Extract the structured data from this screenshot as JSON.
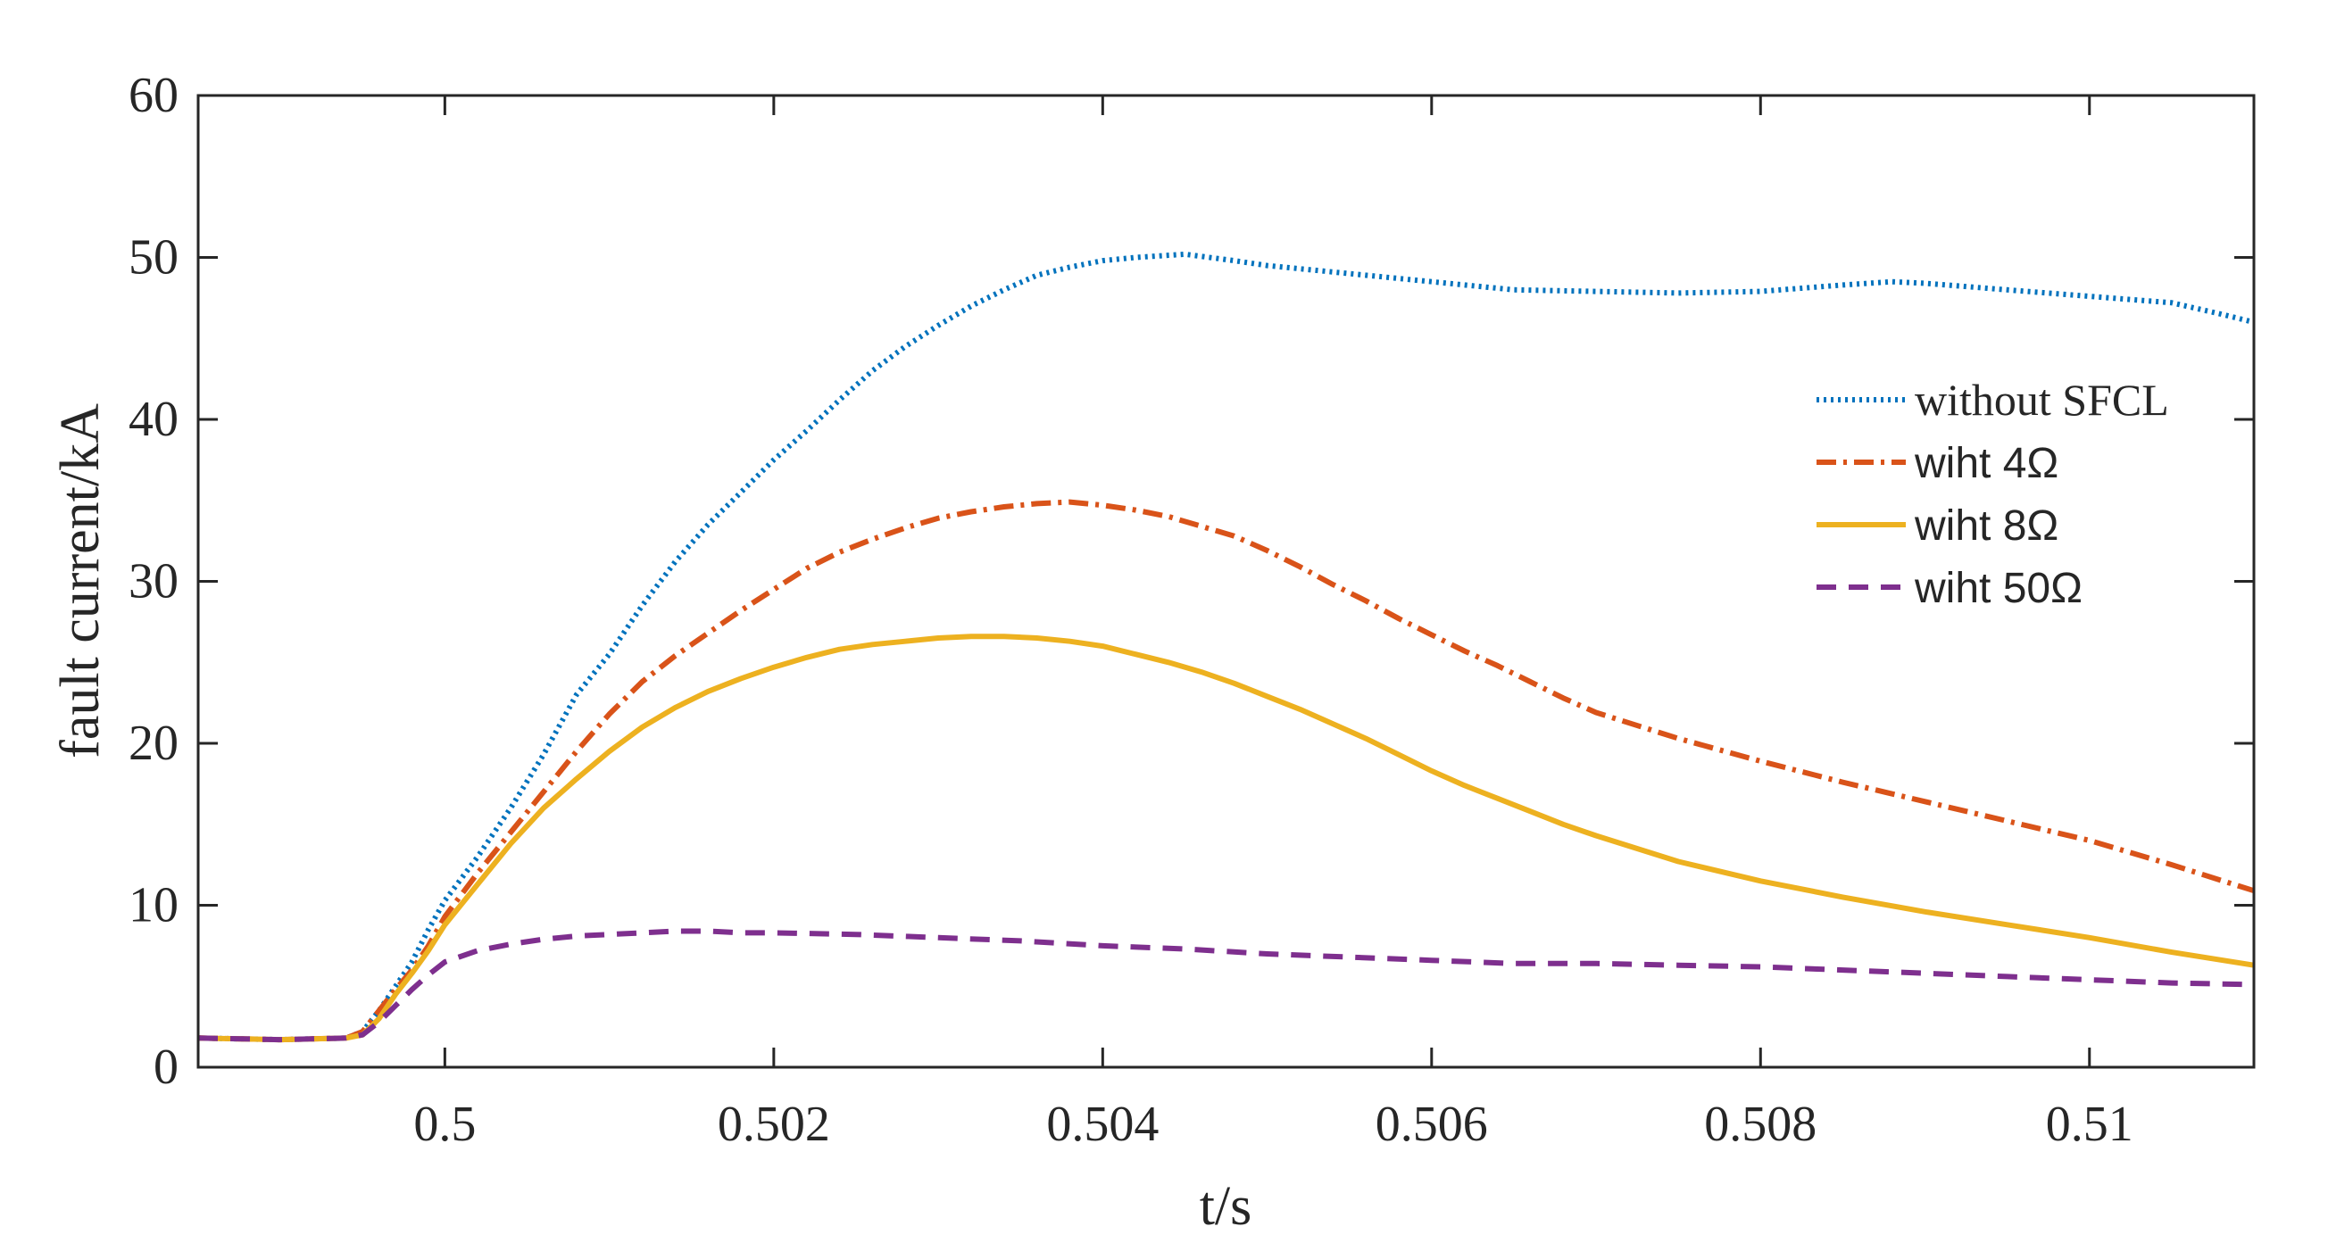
{
  "chart_data": {
    "type": "line",
    "title": "",
    "xlabel": "t/s",
    "ylabel": "fault current/kA",
    "xlim": [
      0.4985,
      0.511
    ],
    "ylim": [
      0,
      60
    ],
    "xticks": [
      0.5,
      0.502,
      0.504,
      0.506,
      0.508,
      0.51
    ],
    "xtick_labels": [
      "0.5",
      "0.502",
      "0.504",
      "0.506",
      "0.508",
      "0.51"
    ],
    "yticks": [
      0,
      10,
      20,
      30,
      40,
      50,
      60
    ],
    "ytick_labels": [
      "0",
      "10",
      "20",
      "30",
      "40",
      "50",
      "60"
    ],
    "grid": false,
    "legend_position": "right",
    "series": [
      {
        "name": "without SFCL",
        "color": "#0072BD",
        "style": "dotted",
        "x": [
          0.4985,
          0.499,
          0.4994,
          0.4995,
          0.4996,
          0.4997,
          0.4998,
          0.4999,
          0.5,
          0.5002,
          0.5004,
          0.5006,
          0.5008,
          0.501,
          0.5012,
          0.5014,
          0.5016,
          0.5018,
          0.502,
          0.5022,
          0.5024,
          0.5026,
          0.5028,
          0.503,
          0.5032,
          0.5034,
          0.5036,
          0.5038,
          0.504,
          0.5042,
          0.5045,
          0.5048,
          0.505,
          0.5055,
          0.506,
          0.5065,
          0.507,
          0.5075,
          0.508,
          0.5085,
          0.5088,
          0.509,
          0.5095,
          0.51,
          0.5105,
          0.5108,
          0.511
        ],
        "y": [
          1.8,
          1.7,
          1.8,
          2.2,
          3.5,
          5.0,
          6.5,
          8.5,
          10.3,
          13.0,
          16.0,
          19.3,
          23.0,
          25.5,
          28.5,
          31.2,
          33.5,
          35.5,
          37.5,
          39.3,
          41.2,
          43.0,
          44.5,
          45.8,
          47.0,
          48.0,
          48.9,
          49.4,
          49.8,
          50.0,
          50.2,
          49.8,
          49.5,
          49.0,
          48.5,
          48.0,
          47.9,
          47.8,
          47.9,
          48.3,
          48.5,
          48.4,
          48.0,
          47.6,
          47.2,
          46.5,
          46.0
        ]
      },
      {
        "name": "wiht 4Ω",
        "color": "#D95319",
        "style": "dashdot",
        "x": [
          0.4985,
          0.499,
          0.4994,
          0.4995,
          0.4996,
          0.4997,
          0.4998,
          0.4999,
          0.5,
          0.5002,
          0.5004,
          0.5006,
          0.5008,
          0.501,
          0.5012,
          0.5014,
          0.5016,
          0.5018,
          0.502,
          0.5022,
          0.5024,
          0.5026,
          0.5028,
          0.503,
          0.5032,
          0.5034,
          0.5036,
          0.5038,
          0.504,
          0.5042,
          0.5044,
          0.5046,
          0.5048,
          0.505,
          0.5052,
          0.5054,
          0.5056,
          0.5058,
          0.506,
          0.5062,
          0.5064,
          0.5066,
          0.5068,
          0.507,
          0.5075,
          0.508,
          0.5085,
          0.509,
          0.5095,
          0.51,
          0.5105,
          0.511
        ],
        "y": [
          1.8,
          1.7,
          1.8,
          2.2,
          3.5,
          4.8,
          6.0,
          7.5,
          9.3,
          12.0,
          14.5,
          17.0,
          19.5,
          21.8,
          23.8,
          25.4,
          26.8,
          28.2,
          29.5,
          30.8,
          31.8,
          32.6,
          33.3,
          33.9,
          34.3,
          34.6,
          34.8,
          34.9,
          34.7,
          34.4,
          34.0,
          33.4,
          32.8,
          31.9,
          30.9,
          29.8,
          28.8,
          27.7,
          26.7,
          25.7,
          24.8,
          23.8,
          22.8,
          21.9,
          20.3,
          18.9,
          17.6,
          16.4,
          15.2,
          14.0,
          12.5,
          10.9
        ]
      },
      {
        "name": "wiht 8Ω",
        "color": "#EDB120",
        "style": "solid",
        "x": [
          0.4985,
          0.499,
          0.4994,
          0.4995,
          0.4996,
          0.4997,
          0.4998,
          0.4999,
          0.5,
          0.5002,
          0.5004,
          0.5006,
          0.5008,
          0.501,
          0.5012,
          0.5014,
          0.5016,
          0.5018,
          0.502,
          0.5022,
          0.5024,
          0.5026,
          0.5028,
          0.503,
          0.5032,
          0.5034,
          0.5036,
          0.5038,
          0.504,
          0.5042,
          0.5044,
          0.5046,
          0.5048,
          0.505,
          0.5052,
          0.5054,
          0.5056,
          0.5058,
          0.506,
          0.5062,
          0.5064,
          0.5066,
          0.5068,
          0.507,
          0.5075,
          0.508,
          0.5085,
          0.509,
          0.5095,
          0.51,
          0.5105,
          0.511
        ],
        "y": [
          1.8,
          1.7,
          1.8,
          2.0,
          3.0,
          4.5,
          5.8,
          7.2,
          8.8,
          11.3,
          13.8,
          16.0,
          17.8,
          19.5,
          21.0,
          22.2,
          23.2,
          24.0,
          24.7,
          25.3,
          25.8,
          26.1,
          26.3,
          26.5,
          26.6,
          26.6,
          26.5,
          26.3,
          26.0,
          25.5,
          25.0,
          24.4,
          23.7,
          22.9,
          22.1,
          21.2,
          20.3,
          19.3,
          18.3,
          17.4,
          16.6,
          15.8,
          15.0,
          14.3,
          12.7,
          11.5,
          10.5,
          9.6,
          8.8,
          8.0,
          7.1,
          6.3
        ]
      },
      {
        "name": "wiht 50Ω",
        "color": "#7E2F8E",
        "style": "dashed",
        "x": [
          0.4985,
          0.499,
          0.4994,
          0.4995,
          0.4996,
          0.4997,
          0.4998,
          0.4999,
          0.5,
          0.5002,
          0.5004,
          0.5006,
          0.5008,
          0.501,
          0.5012,
          0.5014,
          0.5016,
          0.5018,
          0.502,
          0.5025,
          0.503,
          0.5035,
          0.504,
          0.5045,
          0.505,
          0.5055,
          0.506,
          0.5065,
          0.507,
          0.5075,
          0.508,
          0.5085,
          0.509,
          0.5095,
          0.51,
          0.5105,
          0.511
        ],
        "y": [
          1.8,
          1.7,
          1.8,
          2.0,
          2.8,
          3.8,
          4.8,
          5.7,
          6.5,
          7.2,
          7.6,
          7.9,
          8.1,
          8.2,
          8.3,
          8.4,
          8.4,
          8.3,
          8.3,
          8.2,
          8.0,
          7.8,
          7.5,
          7.3,
          7.0,
          6.8,
          6.6,
          6.4,
          6.4,
          6.3,
          6.2,
          6.0,
          5.8,
          5.6,
          5.4,
          5.2,
          5.1
        ]
      }
    ]
  }
}
